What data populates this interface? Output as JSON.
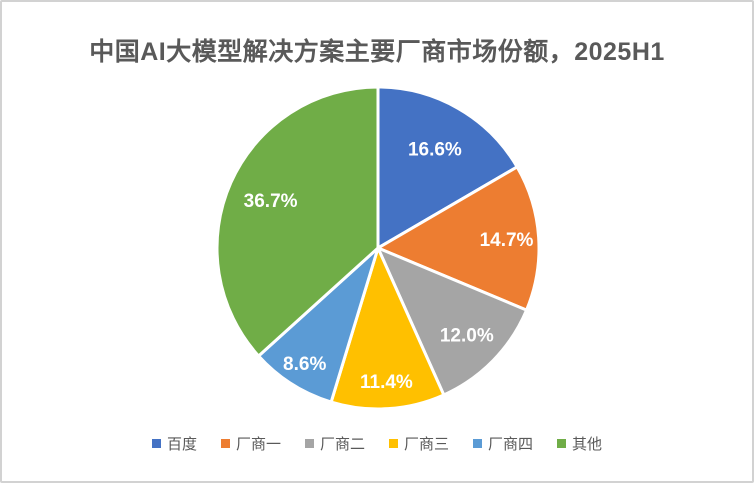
{
  "chart_data": {
    "type": "pie",
    "title": "中国AI大模型解决方案主要厂商市场份额，2025H1",
    "title_color": "#595959",
    "start_angle_deg": 0,
    "direction": "clockwise",
    "slices": [
      {
        "label": "百度",
        "value": 16.6,
        "display": "16.6%",
        "color": "#4472C4"
      },
      {
        "label": "厂商一",
        "value": 14.7,
        "display": "14.7%",
        "color": "#ED7D31"
      },
      {
        "label": "厂商二",
        "value": 12.0,
        "display": "12.0%",
        "color": "#A5A5A5"
      },
      {
        "label": "厂商三",
        "value": 11.4,
        "display": "11.4%",
        "color": "#FFC000"
      },
      {
        "label": "厂商四",
        "value": 8.6,
        "display": "8.6%",
        "color": "#5B9BD5"
      },
      {
        "label": "其他",
        "value": 36.7,
        "display": "36.7%",
        "color": "#70AD47"
      }
    ],
    "data_label_color": "#ffffff",
    "slice_border_color": "#ffffff",
    "label_radius_factors": [
      0.71,
      0.8,
      0.77,
      0.83,
      0.85,
      0.73
    ],
    "legend": {
      "position": "bottom",
      "text_color": "#595959",
      "labels": [
        "百度",
        "厂商一",
        "厂商二",
        "厂商三",
        "厂商四",
        "其他"
      ]
    }
  }
}
